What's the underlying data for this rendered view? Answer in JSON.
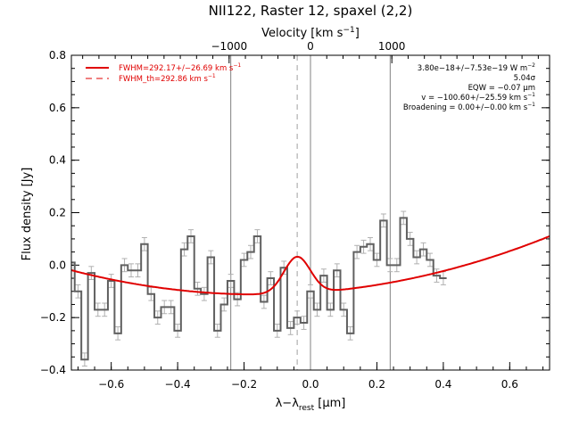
{
  "chart_data": {
    "type": "line",
    "title": "NII122, Raster 12, spaxel (2,2)",
    "xlabel_main": "λ−λ",
    "xlabel_sub": "rest",
    "xlabel_unit": " [μm]",
    "ylabel": "Flux density [Jy]",
    "top_axis_label": "Velocity [km s",
    "top_axis_label_sup": "−1",
    "top_axis_label_end": "]",
    "xlim": [
      -0.72,
      0.72
    ],
    "ylim": [
      -0.4,
      0.8
    ],
    "xticks": [
      -0.6,
      -0.4,
      -0.2,
      0.0,
      0.2,
      0.4,
      0.6
    ],
    "xtick_labels": [
      "−0.6",
      "−0.4",
      "−0.2",
      "0.0",
      "0.2",
      "0.4",
      "0.6"
    ],
    "yticks": [
      -0.4,
      -0.2,
      0.0,
      0.2,
      0.4,
      0.6,
      0.8
    ],
    "ytick_labels": [
      "−0.4",
      "−0.2",
      "0.0",
      "0.2",
      "0.4",
      "0.6",
      "0.8"
    ],
    "top_ticks_velocity": [
      -1000,
      0,
      1000
    ],
    "top_tick_labels": [
      "−1000",
      "0",
      "1000"
    ],
    "vertical_lines": [
      -0.24,
      0.0,
      0.24
    ],
    "dashed_line_x": -0.04,
    "legend": {
      "placement": "top-left",
      "color": "#e00000",
      "fit_label": "FWHM=292.17+/−26.69 km s",
      "fit_label_sup": "−1",
      "th_label": "FWHM_th=292.86 km s",
      "th_label_sup": "−1"
    },
    "annotations": {
      "placement": "top-right",
      "line1": "3.80e−18+/−7.53e−19 W m",
      "line1_sup": "−2",
      "line2": "5.04σ",
      "line3": "EQW = −0.07 μm",
      "line4": "v = −100.60+/−25.59 km s",
      "line4_sup": "−1",
      "line5": "Broadening = 0.00+/−0.00 km s",
      "line5_sup": "−1"
    },
    "spectrum": {
      "name": "",
      "bin_width": 0.02,
      "x_start": -0.73,
      "values": [
        0.01,
        -0.1,
        -0.36,
        -0.03,
        -0.17,
        -0.17,
        -0.06,
        -0.26,
        0.0,
        -0.02,
        -0.02,
        0.08,
        -0.11,
        -0.2,
        -0.16,
        -0.16,
        -0.25,
        0.06,
        0.11,
        -0.09,
        -0.11,
        0.03,
        -0.25,
        -0.15,
        -0.06,
        -0.13,
        0.02,
        0.05,
        0.11,
        -0.14,
        -0.05,
        -0.25,
        -0.01,
        -0.24,
        -0.2,
        -0.22,
        -0.1,
        -0.17,
        -0.04,
        -0.17,
        -0.02,
        -0.17,
        -0.26,
        0.05,
        0.07,
        0.08,
        0.02,
        0.17,
        0.0,
        0.0,
        0.18,
        0.1,
        0.03,
        0.06,
        0.02,
        -0.04,
        -0.05
      ],
      "error": 0.025
    },
    "fit_model": {
      "name": "",
      "baseline_a": -0.105,
      "baseline_b": 0.09,
      "baseline_c": 0.29,
      "gauss_amp": 0.14,
      "gauss_center": -0.04,
      "gauss_sigma": 0.04
    }
  }
}
